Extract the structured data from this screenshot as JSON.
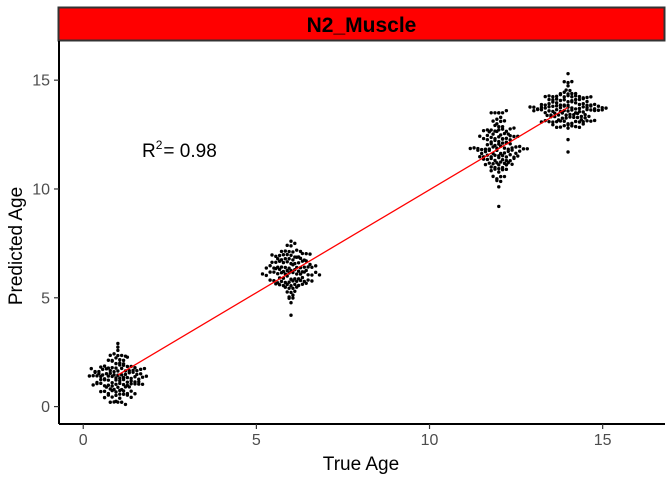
{
  "chart_data": {
    "type": "scatter",
    "style": "beeswarm",
    "title": "N2_Muscle",
    "xlabel": "True Age",
    "ylabel": "Predicted Age",
    "xlim": [
      -0.7,
      16.8
    ],
    "ylim": [
      -0.8,
      16.8
    ],
    "x_ticks": [
      0,
      5,
      10,
      15
    ],
    "y_ticks": [
      0,
      5,
      10,
      15
    ],
    "grid": false,
    "strip_color": "#ff0000",
    "point_color": "#000000",
    "fit_line_color": "#ff0000",
    "annotation": {
      "base": "R",
      "superscript": "2",
      "text": "= 0.98",
      "x": 2.9,
      "y": 11.6
    },
    "fit_line": {
      "x": [
        1,
        14
      ],
      "y": [
        1.45,
        13.75
      ]
    },
    "groups": [
      {
        "x": 1,
        "center": 1.3,
        "spread": 0.58,
        "min": 0.1,
        "max": 2.9,
        "n": 130
      },
      {
        "x": 6,
        "center": 6.25,
        "spread": 0.55,
        "min": 4.2,
        "max": 7.6,
        "n": 120
      },
      {
        "x": 12,
        "center": 11.95,
        "spread": 0.72,
        "min": 9.2,
        "max": 13.6,
        "n": 130
      },
      {
        "x": 14,
        "center": 13.7,
        "spread": 0.55,
        "min": 11.7,
        "max": 15.3,
        "n": 140
      }
    ]
  }
}
